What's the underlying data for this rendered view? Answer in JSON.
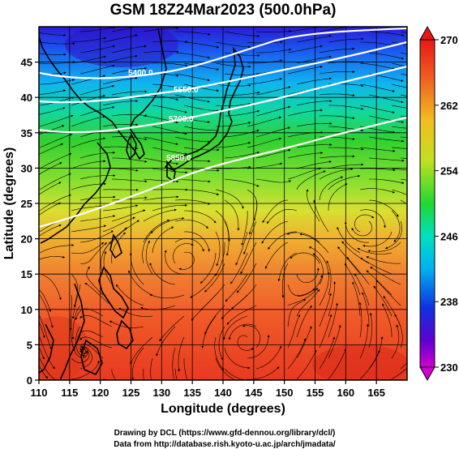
{
  "title": "GSM 18Z24Mar2023 (500.0hPa)",
  "xlabel": "Longitude (degrees)",
  "ylabel": "Latitude  (degrees)",
  "x_ticks": [
    "110",
    "115",
    "120",
    "125",
    "130",
    "135",
    "140",
    "145",
    "150",
    "155",
    "160",
    "165"
  ],
  "y_ticks": [
    "0",
    "5",
    "10",
    "15",
    "20",
    "25",
    "30",
    "35",
    "40",
    "45"
  ],
  "colorbar": {
    "labels": [
      "270",
      "262",
      "254",
      "246",
      "238",
      "230"
    ],
    "min": 230,
    "max": 270
  },
  "contours": [
    {
      "label": "5400.0",
      "value": 5400
    },
    {
      "label": "5550.0",
      "value": 5550
    },
    {
      "label": "5700.0",
      "value": 5700
    },
    {
      "label": "5850.0",
      "value": 5850
    }
  ],
  "credits": {
    "line1": "Drawing by DCL (https://www.gfd-dennou.org/library/dcl/)",
    "line2": "Data from http://database.rish.kyoto-u.ac.jp/arch/jmadata/"
  },
  "chart_data": {
    "type": "heatmap",
    "field": "temperature shading with wind streamlines and geopotential height contours",
    "xlim": [
      110,
      170
    ],
    "ylim": [
      0,
      50
    ],
    "color_range": [
      230,
      270
    ],
    "colormap": [
      "#cc00cc",
      "#2000d0",
      "#0070ff",
      "#00d8e0",
      "#20d830",
      "#c0e020",
      "#f0c020",
      "#f07020",
      "#e02020"
    ]
  }
}
